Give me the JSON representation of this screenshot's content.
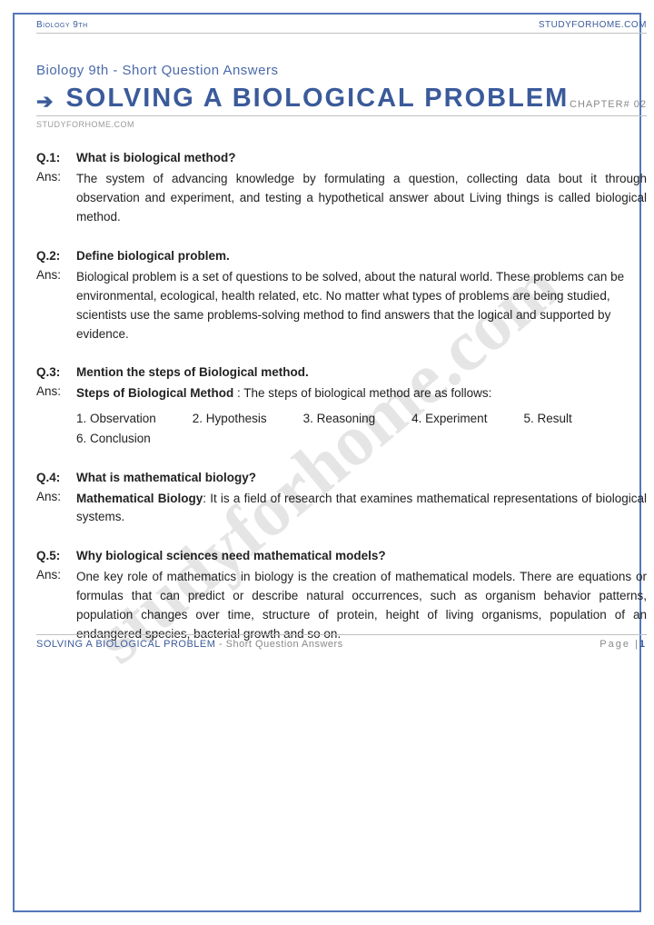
{
  "header": {
    "left": "Biology 9th",
    "right": "STUDYFORHOME.COM"
  },
  "subtitle": "Biology 9th - Short Question Answers",
  "title": "SOLVING A BIOLOGICAL PROBLEM",
  "chapter_label": "CHAPTER# 02",
  "site_small": "STUDYFORHOME.COM",
  "watermark": "studyforhome.com",
  "colors": {
    "border": "#5577bb",
    "heading": "#3a5a9a",
    "muted": "#888",
    "text": "#222"
  },
  "questions": [
    {
      "q_num": "Q.1:",
      "q_text": "What is biological method?",
      "a_label": "Ans:",
      "a_text": "The system of advancing knowledge by formulating a question, collecting data bout it through observation and experiment, and testing a hypothetical answer about Living things is called biological method.",
      "justify": true
    },
    {
      "q_num": "Q.2:",
      "q_text": "Define biological problem.",
      "a_label": "Ans:",
      "a_text": "Biological problem is a set of questions to be solved, about the natural world. These problems can be environmental, ecological, health related, etc. No matter what types of problems are being studied, scientists use the same problems-solving method to find answers that the logical and supported by evidence.",
      "justify": false
    },
    {
      "q_num": "Q.3:",
      "q_text": "Mention the steps of Biological method.",
      "a_label": "Ans:",
      "a_bold_prefix": "Steps of Biological Method",
      "a_after_prefix": " :  The steps of biological method are as follows:",
      "steps": [
        "1. Observation",
        "2. Hypothesis",
        "3. Reasoning",
        "4. Experiment",
        "5. Result",
        "6. Conclusion"
      ]
    },
    {
      "q_num": "Q.4:",
      "q_text": "What is mathematical biology?",
      "a_label": "Ans:",
      "a_bold_prefix": "Mathematical Biology",
      "a_after_prefix": ": It is a field of research that examines mathematical representations of biological systems.",
      "justify": true
    },
    {
      "q_num": "Q.5:",
      "q_text": "Why biological sciences need mathematical models?",
      "a_label": "Ans:",
      "a_text": "One key role of mathematics in biology is the creation of mathematical models. There are equations or formulas that can predict or describe natural occurrences, such as organism behavior patterns, population changes over time, structure of protein, height of living organisms, population of an endangered species, bacterial growth and so on.",
      "justify": true
    }
  ],
  "footer": {
    "title": "SOLVING A BIOLOGICAL PROBLEM",
    "suffix": " - Short Question Answers",
    "page_label": "Page |",
    "page_num": "1"
  }
}
